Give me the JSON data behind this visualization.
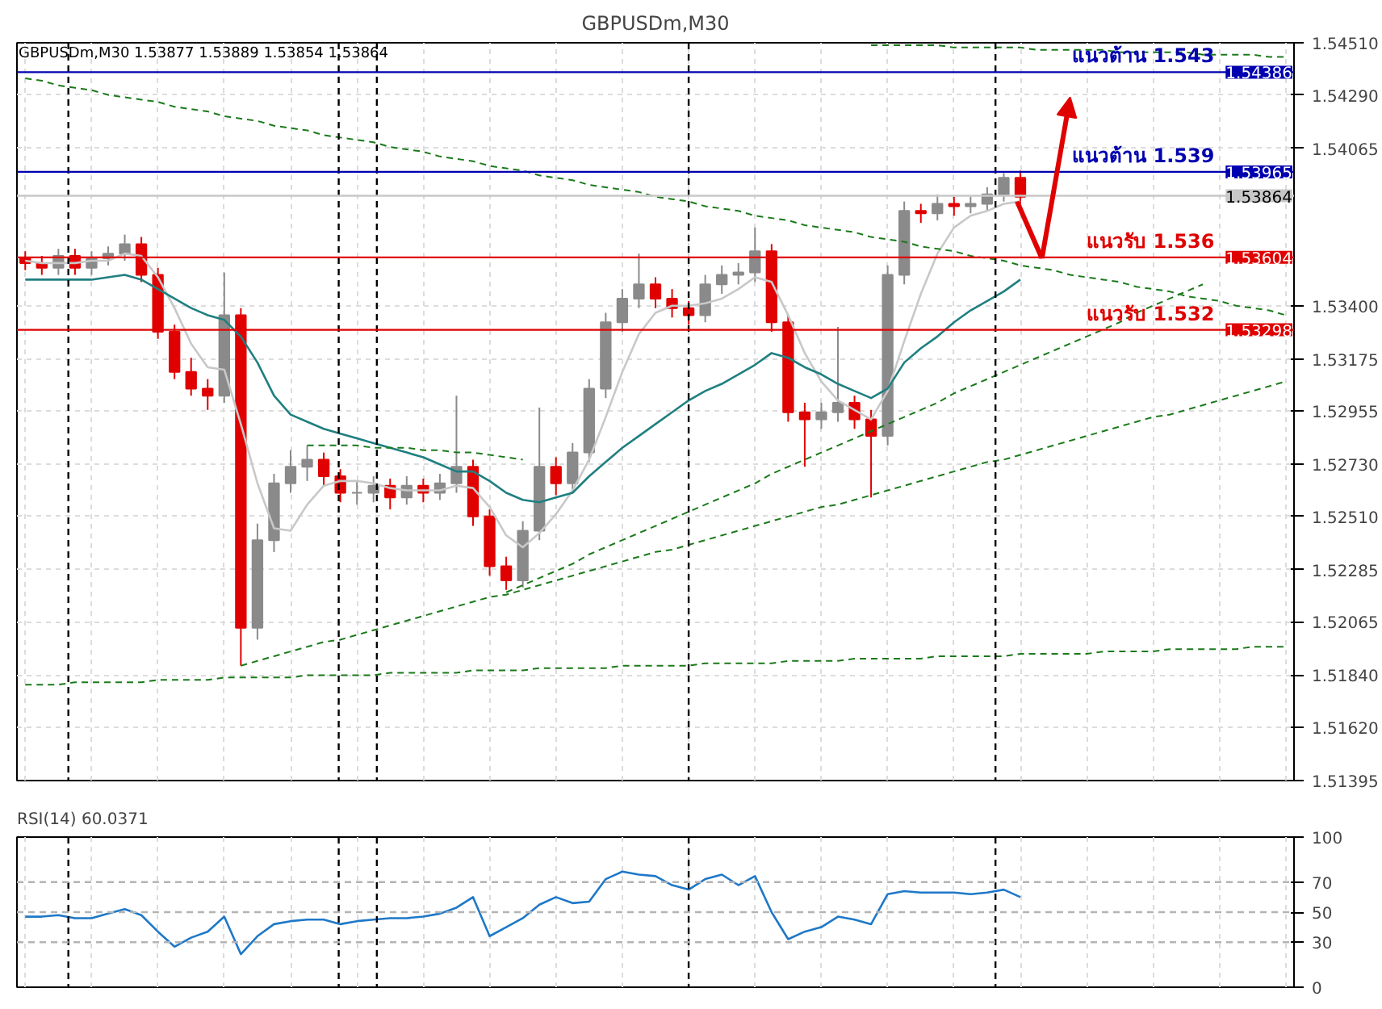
{
  "chart_data": [
    {
      "type": "candlestick",
      "title": "GBPUSDm,M30",
      "subtitle": "GBPUSDm,M30  1.53877 1.53889 1.53854 1.53864",
      "categories": [
        null,
        null,
        null,
        null,
        null,
        null,
        null,
        null,
        null,
        null,
        null,
        null,
        null,
        null,
        null,
        null,
        null,
        null,
        null,
        null,
        null,
        null,
        null,
        null,
        null,
        null,
        null,
        null,
        null,
        null,
        null,
        null,
        null,
        null,
        null,
        null,
        null,
        null,
        null,
        null,
        null,
        null,
        null,
        null,
        null,
        null,
        null,
        null,
        null,
        null,
        null,
        null,
        null,
        null,
        null,
        null,
        null,
        null,
        null,
        null,
        null,
        null,
        null,
        null,
        null,
        null,
        null,
        null,
        null,
        null,
        null,
        null,
        null,
        null,
        null,
        null,
        null
      ],
      "ohlc": [
        [
          1.536,
          1.5363,
          1.5355,
          1.5358
        ],
        [
          1.5358,
          1.5361,
          1.5353,
          1.5356
        ],
        [
          1.5356,
          1.5364,
          1.5353,
          1.5361
        ],
        [
          1.5361,
          1.5364,
          1.5353,
          1.5356
        ],
        [
          1.5356,
          1.5363,
          1.5353,
          1.536
        ],
        [
          1.536,
          1.5365,
          1.5357,
          1.5362
        ],
        [
          1.5362,
          1.537,
          1.5359,
          1.5366
        ],
        [
          1.5366,
          1.5369,
          1.535,
          1.5353
        ],
        [
          1.5353,
          1.5356,
          1.5326,
          1.5329
        ],
        [
          1.5329,
          1.5332,
          1.5309,
          1.5312
        ],
        [
          1.5312,
          1.5318,
          1.5302,
          1.5305
        ],
        [
          1.5305,
          1.5309,
          1.5296,
          1.5302
        ],
        [
          1.5302,
          1.5354,
          1.5299,
          1.5336
        ],
        [
          1.5336,
          1.5339,
          1.5188,
          1.5204
        ],
        [
          1.5204,
          1.5248,
          1.5199,
          1.5241
        ],
        [
          1.5241,
          1.5269,
          1.5236,
          1.5265
        ],
        [
          1.5265,
          1.5279,
          1.5261,
          1.5272
        ],
        [
          1.5272,
          1.5281,
          1.5266,
          1.5275
        ],
        [
          1.5275,
          1.5278,
          1.5264,
          1.5268
        ],
        [
          1.5268,
          1.5271,
          1.5257,
          1.5261
        ],
        [
          1.5261,
          1.5266,
          1.5256,
          1.5261
        ],
        [
          1.5261,
          1.5268,
          1.5257,
          1.5264
        ],
        [
          1.5264,
          1.5267,
          1.5254,
          1.5259
        ],
        [
          1.5259,
          1.5268,
          1.5256,
          1.5264
        ],
        [
          1.5264,
          1.5267,
          1.5257,
          1.5261
        ],
        [
          1.5261,
          1.5269,
          1.5258,
          1.5265
        ],
        [
          1.5265,
          1.5302,
          1.5261,
          1.5272
        ],
        [
          1.5272,
          1.5275,
          1.5247,
          1.5251
        ],
        [
          1.5251,
          1.5254,
          1.5226,
          1.523
        ],
        [
          1.523,
          1.5234,
          1.522,
          1.5224
        ],
        [
          1.5224,
          1.5249,
          1.5221,
          1.5245
        ],
        [
          1.5245,
          1.5297,
          1.5241,
          1.5272
        ],
        [
          1.5272,
          1.5276,
          1.526,
          1.5265
        ],
        [
          1.5265,
          1.5282,
          1.5261,
          1.5278
        ],
        [
          1.5278,
          1.5309,
          1.5274,
          1.5305
        ],
        [
          1.5305,
          1.5337,
          1.5301,
          1.5333
        ],
        [
          1.5333,
          1.5347,
          1.5329,
          1.5343
        ],
        [
          1.5343,
          1.5362,
          1.5339,
          1.5349
        ],
        [
          1.5349,
          1.5352,
          1.5339,
          1.5343
        ],
        [
          1.5343,
          1.5347,
          1.5335,
          1.5339
        ],
        [
          1.5339,
          1.5342,
          1.5332,
          1.5336
        ],
        [
          1.5336,
          1.5353,
          1.5333,
          1.5349
        ],
        [
          1.5349,
          1.5357,
          1.5345,
          1.5353
        ],
        [
          1.5353,
          1.5358,
          1.5349,
          1.5354
        ],
        [
          1.5354,
          1.5373,
          1.535,
          1.5363
        ],
        [
          1.5363,
          1.5366,
          1.5329,
          1.5333
        ],
        [
          1.5333,
          1.5336,
          1.5291,
          1.5295
        ],
        [
          1.5295,
          1.5299,
          1.5272,
          1.5292
        ],
        [
          1.5292,
          1.5299,
          1.5288,
          1.5295
        ],
        [
          1.5295,
          1.5331,
          1.5291,
          1.5299
        ],
        [
          1.5299,
          1.5302,
          1.5288,
          1.5292
        ],
        [
          1.5292,
          1.5296,
          1.5259,
          1.5285
        ],
        [
          1.5285,
          1.5357,
          1.5281,
          1.5353
        ],
        [
          1.5353,
          1.5384,
          1.5349,
          1.538
        ],
        [
          1.538,
          1.5383,
          1.5375,
          1.5379
        ],
        [
          1.5379,
          1.5387,
          1.5376,
          1.5383
        ],
        [
          1.5383,
          1.5386,
          1.5378,
          1.5382
        ],
        [
          1.5382,
          1.5386,
          1.5379,
          1.5383
        ],
        [
          1.5383,
          1.539,
          1.538,
          1.5387
        ],
        [
          1.5387,
          1.5396,
          1.5384,
          1.5394
        ],
        [
          1.5394,
          1.5397,
          1.5383,
          1.5386
        ],
        null,
        null,
        null,
        null,
        null,
        null,
        null,
        null,
        null,
        null,
        null,
        null,
        null,
        null,
        null,
        null
      ],
      "colors": [
        "#e00000",
        "#e00000",
        "#8a8a8a",
        "#e00000",
        "#8a8a8a",
        "#8a8a8a",
        "#8a8a8a",
        "#e00000",
        "#e00000",
        "#e00000",
        "#e00000",
        "#e00000",
        "#8a8a8a",
        "#e00000",
        "#8a8a8a",
        "#8a8a8a",
        "#8a8a8a",
        "#8a8a8a",
        "#e00000",
        "#e00000",
        "#8a8a8a",
        "#8a8a8a",
        "#e00000",
        "#8a8a8a",
        "#e00000",
        "#8a8a8a",
        "#8a8a8a",
        "#e00000",
        "#e00000",
        "#e00000",
        "#8a8a8a",
        "#8a8a8a",
        "#e00000",
        "#8a8a8a",
        "#8a8a8a",
        "#8a8a8a",
        "#8a8a8a",
        "#8a8a8a",
        "#e00000",
        "#e00000",
        "#e00000",
        "#8a8a8a",
        "#8a8a8a",
        "#8a8a8a",
        "#8a8a8a",
        "#e00000",
        "#e00000",
        "#e00000",
        "#8a8a8a",
        "#8a8a8a",
        "#e00000",
        "#e00000",
        "#8a8a8a",
        "#8a8a8a",
        "#e00000",
        "#8a8a8a",
        "#e00000",
        "#8a8a8a",
        "#8a8a8a",
        "#8a8a8a",
        "#e00000",
        null,
        null,
        null,
        null,
        null,
        null,
        null,
        null,
        null,
        null,
        null,
        null,
        null,
        null,
        null,
        null
      ],
      "series": [
        {
          "type": "line",
          "color": "#c8c8c8",
          "line_style": "solid",
          "values": [
            1.5359,
            1.5358,
            1.5358,
            1.5358,
            1.5359,
            1.5359,
            1.5362,
            1.5361,
            1.5352,
            1.5339,
            1.5324,
            1.5314,
            1.5313,
            1.529,
            1.5265,
            1.5246,
            1.5245,
            1.5256,
            1.5264,
            1.5266,
            1.5266,
            1.5265,
            1.5263,
            1.5262,
            1.5262,
            1.5262,
            1.5264,
            1.5263,
            1.5255,
            1.5243,
            1.5238,
            1.5244,
            1.5252,
            1.5262,
            1.5275,
            1.5293,
            1.5312,
            1.5328,
            1.5337,
            1.534,
            1.534,
            1.5341,
            1.5343,
            1.5347,
            1.5352,
            1.535,
            1.5336,
            1.532,
            1.5308,
            1.53,
            1.5296,
            1.5292,
            1.5304,
            1.5325,
            1.5345,
            1.5362,
            1.5373,
            1.5378,
            1.538,
            1.5383,
            1.5384,
            null,
            null,
            null,
            null,
            null,
            null,
            null,
            null,
            null,
            null,
            null,
            null,
            null,
            null,
            null,
            null
          ]
        },
        {
          "type": "line",
          "color": "#1f7f80",
          "line_style": "solid",
          "values": [
            1.5351,
            1.5351,
            1.5351,
            1.5351,
            1.5351,
            1.5352,
            1.5353,
            1.5351,
            1.5347,
            1.5343,
            1.5339,
            1.5336,
            1.5334,
            1.5327,
            1.5316,
            1.5302,
            1.5294,
            1.5291,
            1.5288,
            1.5286,
            1.5284,
            1.5282,
            1.528,
            1.5278,
            1.5276,
            1.5273,
            1.527,
            1.527,
            1.5266,
            1.5261,
            1.5258,
            1.5257,
            1.5259,
            1.5261,
            1.5268,
            1.5274,
            1.528,
            1.5285,
            1.529,
            1.5295,
            1.53,
            1.5304,
            1.5307,
            1.5311,
            1.5315,
            1.532,
            1.5318,
            1.5314,
            1.5311,
            1.5307,
            1.5304,
            1.5301,
            1.5305,
            1.5316,
            1.5322,
            1.5327,
            1.5333,
            1.5338,
            1.5342,
            1.5346,
            1.5351,
            null,
            null,
            null,
            null,
            null,
            null,
            null,
            null,
            null,
            null,
            null,
            null,
            null,
            null,
            null,
            null
          ]
        },
        {
          "type": "line",
          "color": "#1a7a1a",
          "line_style": "dashed",
          "values": [
            1.5436,
            1.5435,
            1.5433,
            1.5432,
            1.5431,
            1.5429,
            1.5428,
            1.5427,
            1.5426,
            1.5424,
            1.5423,
            1.5422,
            1.542,
            1.5419,
            1.5418,
            1.5416,
            1.5415,
            1.5414,
            1.5412,
            1.5411,
            1.541,
            1.5409,
            1.5407,
            1.5406,
            1.5405,
            1.5403,
            1.5402,
            1.5401,
            1.5399,
            1.5398,
            1.5397,
            1.5395,
            1.5394,
            1.5393,
            1.5391,
            1.539,
            1.5389,
            1.5388,
            1.5386,
            1.5385,
            1.5384,
            1.5382,
            1.5381,
            1.538,
            1.5378,
            1.5377,
            1.5376,
            1.5374,
            1.5373,
            1.5372,
            1.5371,
            1.5369,
            1.5368,
            1.5367,
            1.5365,
            1.5364,
            1.5363,
            1.5361,
            1.536,
            1.5359,
            1.5357,
            1.5356,
            1.5355,
            1.5353,
            1.5352,
            1.5351,
            1.535,
            1.5348,
            1.5347,
            1.5346,
            1.5344,
            1.5343,
            1.5342,
            1.534,
            1.5339,
            1.5338,
            1.5336
          ]
        },
        {
          "type": "line",
          "color": "#1a7a1a",
          "line_style": "dashed",
          "values": [
            null,
            null,
            null,
            null,
            null,
            null,
            null,
            null,
            null,
            null,
            null,
            null,
            null,
            1.5188,
            1.519,
            1.5192,
            1.5194,
            1.5196,
            1.5198,
            1.5199,
            1.5201,
            1.5203,
            1.5205,
            1.5207,
            1.5209,
            1.5211,
            1.5213,
            1.5215,
            1.5217,
            1.5218,
            1.522,
            1.5222,
            1.5224,
            1.5226,
            1.5228,
            1.523,
            1.5232,
            1.5234,
            1.5236,
            1.5237,
            1.5239,
            1.5241,
            1.5243,
            1.5245,
            1.5247,
            1.5249,
            1.5251,
            1.5253,
            1.5255,
            1.5256,
            1.5258,
            1.526,
            1.5262,
            1.5264,
            1.5266,
            1.5268,
            1.527,
            1.5272,
            1.5274,
            1.5275,
            1.5277,
            1.5279,
            1.5281,
            1.5283,
            1.5285,
            1.5287,
            1.5289,
            1.5291,
            1.5293,
            1.5294,
            1.5296,
            1.5298,
            1.53,
            1.5302,
            1.5304,
            1.5306,
            1.5308
          ]
        },
        {
          "type": "line",
          "color": "#1a7a1a",
          "line_style": "dashed",
          "values": [
            null,
            null,
            null,
            null,
            null,
            null,
            null,
            null,
            null,
            null,
            null,
            null,
            null,
            null,
            null,
            null,
            null,
            null,
            null,
            null,
            null,
            null,
            null,
            null,
            null,
            null,
            null,
            null,
            null,
            1.5219,
            1.5222,
            1.5225,
            1.5228,
            1.5231,
            1.5235,
            1.5238,
            1.5241,
            1.5244,
            1.5247,
            1.525,
            1.5253,
            1.5256,
            1.5259,
            1.5262,
            1.5265,
            1.5269,
            1.5272,
            1.5275,
            1.5278,
            1.5281,
            1.5284,
            1.5287,
            1.529,
            1.5293,
            1.5296,
            1.5299,
            1.5303,
            1.5306,
            1.5309,
            1.5312,
            1.5315,
            1.5318,
            1.5321,
            1.5324,
            1.5327,
            1.533,
            1.5333,
            1.5337,
            1.534,
            1.5343,
            1.5346,
            1.5349,
            null,
            null,
            null,
            null,
            null
          ]
        },
        {
          "type": "line",
          "color": "#1a7a1a",
          "line_style": "dashed",
          "values": [
            1.518,
            1.518,
            1.518,
            1.5181,
            1.5181,
            1.5181,
            1.5181,
            1.5181,
            1.5182,
            1.5182,
            1.5182,
            1.5182,
            1.5183,
            1.5183,
            1.5183,
            1.5183,
            1.5183,
            1.5184,
            1.5184,
            1.5184,
            1.5184,
            1.5184,
            1.5185,
            1.5185,
            1.5185,
            1.5185,
            1.5185,
            1.5186,
            1.5186,
            1.5186,
            1.5186,
            1.5187,
            1.5187,
            1.5187,
            1.5187,
            1.5187,
            1.5188,
            1.5188,
            1.5188,
            1.5188,
            1.5188,
            1.5189,
            1.5189,
            1.5189,
            1.5189,
            1.5189,
            1.519,
            1.519,
            1.519,
            1.519,
            1.5191,
            1.5191,
            1.5191,
            1.5191,
            1.5191,
            1.5192,
            1.5192,
            1.5192,
            1.5192,
            1.5192,
            1.5193,
            1.5193,
            1.5193,
            1.5193,
            1.5193,
            1.5194,
            1.5194,
            1.5194,
            1.5194,
            1.5195,
            1.5195,
            1.5195,
            1.5195,
            1.5195,
            1.5196,
            1.5196,
            1.5196
          ]
        },
        {
          "type": "line",
          "color": "#1a7a1a",
          "line_style": "dashed",
          "values": [
            null,
            null,
            null,
            null,
            null,
            null,
            null,
            null,
            null,
            null,
            null,
            null,
            null,
            null,
            null,
            null,
            null,
            null,
            null,
            null,
            null,
            null,
            null,
            null,
            null,
            null,
            null,
            null,
            null,
            null,
            null,
            null,
            null,
            null,
            null,
            null,
            null,
            null,
            null,
            null,
            null,
            null,
            null,
            null,
            null,
            null,
            null,
            null,
            null,
            null,
            null,
            1.545,
            1.545,
            1.545,
            1.545,
            1.545,
            1.5449,
            1.5449,
            1.5449,
            1.5449,
            1.5449,
            1.5448,
            1.5448,
            1.5448,
            1.5448,
            1.5448,
            1.5447,
            1.5447,
            1.5447,
            1.5447,
            1.5447,
            1.5446,
            1.5446,
            1.5446,
            1.5446,
            1.5445,
            1.5445
          ]
        },
        {
          "type": "line",
          "color": "#1a7a1a",
          "line_style": "dashed",
          "values": [
            null,
            null,
            null,
            null,
            null,
            null,
            null,
            null,
            null,
            null,
            null,
            null,
            null,
            null,
            null,
            null,
            null,
            1.5281,
            1.5281,
            1.5281,
            1.5281,
            1.528,
            1.528,
            1.528,
            1.5279,
            1.5279,
            1.5278,
            1.5278,
            1.5277,
            1.5276,
            1.5275,
            null,
            null,
            null,
            null,
            null,
            null,
            null,
            null,
            null,
            null,
            null,
            null,
            null,
            null,
            null,
            null,
            null,
            null,
            null,
            null,
            null,
            null,
            null,
            null,
            null,
            null,
            null,
            null,
            null,
            null,
            null,
            null,
            null,
            null,
            null,
            null,
            null,
            null,
            null,
            null,
            null,
            null,
            null,
            null,
            null,
            null
          ]
        }
      ],
      "ylim": [
        1.51395,
        1.5451
      ],
      "yticks": [
        1.51395,
        {
          "value": 1.5162,
          "label": "1.51620"
        },
        {
          "value": 1.5184,
          "label": "1.51840"
        },
        1.52065,
        1.52285,
        {
          "value": 1.5251,
          "label": "1.52510"
        },
        {
          "value": 1.5273,
          "label": "1.52730"
        },
        1.52955,
        1.53175,
        {
          "value": 1.534,
          "label": "1.53400"
        },
        1.54065,
        {
          "value": 1.5429,
          "label": "1.54290"
        },
        {
          "value": 1.5451,
          "label": "1.54510"
        }
      ],
      "ref_lines": [
        {
          "axis": "y",
          "value": 1.54386,
          "label": "1.54386",
          "color": "#0000b0"
        },
        {
          "axis": "y",
          "value": 1.53965,
          "label": "1.53965",
          "color": "#0000b0"
        },
        {
          "axis": "y",
          "value": 1.53864,
          "label": "1.53864",
          "color": "#c8c8c8"
        },
        {
          "axis": "y",
          "value": 1.53604,
          "label": "1.53604",
          "color": "#e00000"
        },
        {
          "axis": "y",
          "value": 1.53298,
          "label": "1.53298",
          "color": "#e00000"
        }
      ],
      "annotations": [
        {
          "text": "แนวต้าน 1.543",
          "y": 1.54386
        },
        {
          "text": "แนวต้าน 1.539",
          "y": 1.53965
        },
        {
          "text": "แนวรับ 1.536",
          "y": 1.53604
        },
        {
          "text": "แนวรับ 1.532",
          "y": 1.53298
        }
      ],
      "grid": true,
      "tick_labels": "y"
    },
    {
      "type": "line",
      "title": "RSI(14) 60.0371",
      "categories": [
        null,
        null,
        null,
        null,
        null,
        null,
        null,
        null,
        null,
        null,
        null,
        null,
        null,
        null,
        null,
        null,
        null,
        null,
        null,
        null,
        null,
        null,
        null,
        null,
        null,
        null,
        null,
        null,
        null,
        null,
        null,
        null,
        null,
        null,
        null,
        null,
        null,
        null,
        null,
        null,
        null,
        null,
        null,
        null,
        null,
        null,
        null,
        null,
        null,
        null,
        null,
        null,
        null,
        null,
        null,
        null,
        null,
        null,
        null,
        null,
        null,
        null,
        null,
        null,
        null,
        null,
        null,
        null,
        null,
        null,
        null,
        null,
        null,
        null,
        null,
        null,
        null
      ],
      "values": [
        47,
        47,
        48,
        46,
        46,
        49,
        52,
        48,
        37,
        27,
        33,
        37,
        47,
        22,
        34,
        42,
        44,
        45,
        45,
        42,
        44,
        45,
        46,
        46,
        47,
        49,
        53,
        60,
        34,
        40,
        46,
        55,
        60,
        56,
        57,
        72,
        77,
        75,
        74,
        68,
        65,
        72,
        75,
        68,
        74,
        50,
        32,
        37,
        40,
        47,
        45,
        42,
        62,
        64,
        63,
        63,
        63,
        62,
        63,
        65,
        60,
        null,
        null,
        null,
        null,
        null,
        null,
        null,
        null,
        null,
        null,
        null,
        null,
        null,
        null,
        null,
        null
      ],
      "color": "#1e78c8",
      "ylim": [
        0,
        100
      ],
      "yticks": [
        0,
        30,
        50,
        70,
        100
      ],
      "ref_lines": [
        {
          "axis": "y",
          "value": 70,
          "label": null,
          "color": "#b4b4b4",
          "line_style": "dashed"
        },
        {
          "axis": "y",
          "value": 50,
          "label": null,
          "color": "#b4b4b4",
          "line_style": "dashed"
        },
        {
          "axis": "y",
          "value": 30,
          "label": null,
          "color": "#b4b4b4",
          "line_style": "dashed"
        }
      ],
      "grid": "x",
      "tick_labels": "y"
    }
  ]
}
